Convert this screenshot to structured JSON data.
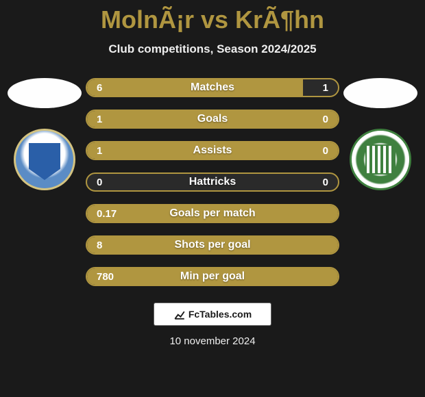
{
  "title": "MolnÃ¡r vs KrÃ¶hn",
  "subtitle": "Club competitions, Season 2024/2025",
  "colors": {
    "accent": "#b09640",
    "bar_bg": "#2a2a2a",
    "page_bg": "#1a1a1a",
    "text_light": "#eeeeee",
    "text_white": "#ffffff"
  },
  "stats": [
    {
      "label": "Matches",
      "left_val": "6",
      "right_val": "1",
      "fill_pct": 86
    },
    {
      "label": "Goals",
      "left_val": "1",
      "right_val": "0",
      "fill_pct": 100
    },
    {
      "label": "Assists",
      "left_val": "1",
      "right_val": "0",
      "fill_pct": 100
    },
    {
      "label": "Hattricks",
      "left_val": "0",
      "right_val": "0",
      "fill_pct": 0
    },
    {
      "label": "Goals per match",
      "left_val": "0.17",
      "right_val": "",
      "fill_pct": 100
    },
    {
      "label": "Shots per goal",
      "left_val": "8",
      "right_val": "",
      "fill_pct": 100
    },
    {
      "label": "Min per goal",
      "left_val": "780",
      "right_val": "",
      "fill_pct": 100
    }
  ],
  "footer_brand": "FcTables.com",
  "footer_date": "10 november 2024"
}
